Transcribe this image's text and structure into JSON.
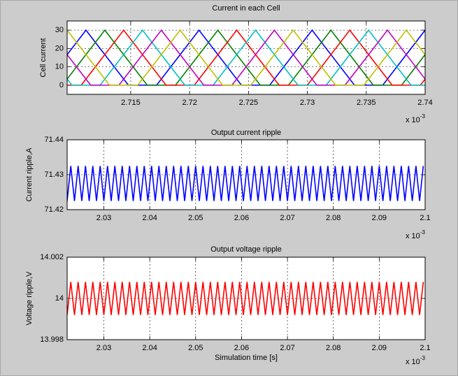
{
  "chart_data": [
    {
      "type": "line",
      "title": "Current in each Cell",
      "ylabel": "Cell current",
      "x_scale": {
        "base": "x 10",
        "exponent": "-3"
      },
      "xlim": [
        2.7096,
        2.74
      ],
      "xticks": [
        2.715,
        2.72,
        2.725,
        2.73,
        2.735,
        2.74
      ],
      "ylim": [
        -5,
        35
      ],
      "yticks": [
        0,
        10,
        20,
        30
      ],
      "grid": true,
      "series": [
        {
          "color": "#0000ff",
          "x": [
            2.7076,
            2.7112,
            2.7148,
            2.7172,
            2.7208,
            2.7244,
            2.7268,
            2.7304,
            2.734,
            2.7364,
            2.74
          ],
          "values": [
            0,
            30,
            0,
            0,
            30,
            0,
            0,
            30,
            0,
            0,
            30
          ]
        },
        {
          "color": "#008000",
          "x": [
            2.7092,
            2.7128,
            2.7164,
            2.7188,
            2.7224,
            2.726,
            2.7284,
            2.732,
            2.7356,
            2.738,
            2.7416
          ],
          "values": [
            0,
            30,
            0,
            0,
            30,
            0,
            0,
            30,
            0,
            0,
            30
          ]
        },
        {
          "color": "#ff0000",
          "x": [
            2.7084,
            2.7108,
            2.7144,
            2.718,
            2.7204,
            2.724,
            2.7276,
            2.73,
            2.7336,
            2.7372,
            2.7396,
            2.7432
          ],
          "values": [
            0,
            0,
            30,
            0,
            0,
            30,
            0,
            0,
            30,
            0,
            0,
            30
          ]
        },
        {
          "color": "#00bfbf",
          "x": [
            2.7064,
            2.71,
            2.7124,
            2.716,
            2.7196,
            2.722,
            2.7256,
            2.7292,
            2.7316,
            2.7352,
            2.7388,
            2.7412
          ],
          "values": [
            30,
            0,
            0,
            30,
            0,
            0,
            30,
            0,
            0,
            30,
            0,
            0
          ]
        },
        {
          "color": "#bf00bf",
          "x": [
            2.708,
            2.7116,
            2.714,
            2.7176,
            2.7212,
            2.7236,
            2.7272,
            2.7308,
            2.7332,
            2.7368,
            2.7404
          ],
          "values": [
            30,
            0,
            0,
            30,
            0,
            0,
            30,
            0,
            0,
            30,
            0
          ]
        },
        {
          "color": "#bfbf00",
          "x": [
            2.706,
            2.7096,
            2.7132,
            2.7156,
            2.7192,
            2.7228,
            2.7252,
            2.7288,
            2.7324,
            2.7348,
            2.7384,
            2.742
          ],
          "values": [
            0,
            30,
            0,
            0,
            30,
            0,
            0,
            30,
            0,
            0,
            30,
            0
          ]
        }
      ]
    },
    {
      "type": "line",
      "title": "Output current ripple",
      "ylabel": "Current ripple,A",
      "x_scale": {
        "base": "x 10",
        "exponent": "-3"
      },
      "xlim": [
        2.022,
        2.1
      ],
      "xticks": [
        2.03,
        2.04,
        2.05,
        2.06,
        2.07,
        2.08,
        2.09,
        2.1
      ],
      "ylim": [
        71.42,
        71.44
      ],
      "yticks": [
        71.42,
        71.43,
        71.44
      ],
      "grid": true,
      "x": [
        2.022,
        2.0228,
        2.0236,
        2.0244,
        2.0252,
        2.026,
        2.0268,
        2.0276,
        2.0284,
        2.0292,
        2.03,
        2.0308,
        2.0316,
        2.0324,
        2.0332,
        2.034,
        2.0348,
        2.0356,
        2.0364,
        2.0372,
        2.038,
        2.0388,
        2.0396,
        2.0404,
        2.0412,
        2.042,
        2.0428,
        2.0436,
        2.0444,
        2.0452,
        2.046,
        2.0468,
        2.0476,
        2.0484,
        2.0492,
        2.05,
        2.0508,
        2.0516,
        2.0524,
        2.0532,
        2.054,
        2.0548,
        2.0556,
        2.0564,
        2.0572,
        2.058,
        2.0588,
        2.0596,
        2.0604,
        2.0612,
        2.062,
        2.0628,
        2.0636,
        2.0644,
        2.0652,
        2.066,
        2.0668,
        2.0676,
        2.0684,
        2.0692,
        2.07,
        2.0708,
        2.0716,
        2.0724,
        2.0732,
        2.074,
        2.0748,
        2.0756,
        2.0764,
        2.0772,
        2.078,
        2.0788,
        2.0796,
        2.0804,
        2.0812,
        2.082,
        2.0828,
        2.0836,
        2.0844,
        2.0852,
        2.086,
        2.0868,
        2.0876,
        2.0884,
        2.0892,
        2.09,
        2.0908,
        2.0916,
        2.0924,
        2.0932,
        2.094,
        2.0948,
        2.0956,
        2.0964,
        2.0972,
        2.098,
        2.0988,
        2.0996
      ],
      "series": [
        {
          "color": "#0000ff",
          "values": [
            71.4225,
            71.4325,
            71.4225,
            71.4325,
            71.4225,
            71.4325,
            71.4225,
            71.4325,
            71.4225,
            71.4325,
            71.4225,
            71.4325,
            71.4225,
            71.4325,
            71.4225,
            71.4325,
            71.4225,
            71.4325,
            71.4225,
            71.4325,
            71.4225,
            71.4325,
            71.4225,
            71.4325,
            71.4225,
            71.4325,
            71.4225,
            71.4325,
            71.4225,
            71.4325,
            71.4225,
            71.4325,
            71.4225,
            71.4325,
            71.4225,
            71.4325,
            71.4225,
            71.4325,
            71.4225,
            71.4325,
            71.4225,
            71.4325,
            71.4225,
            71.4325,
            71.4225,
            71.4325,
            71.4225,
            71.4325,
            71.4225,
            71.4325,
            71.4225,
            71.4325,
            71.4225,
            71.4325,
            71.4225,
            71.4325,
            71.4225,
            71.4325,
            71.4225,
            71.4325,
            71.4225,
            71.4325,
            71.4225,
            71.4325,
            71.4225,
            71.4325,
            71.4225,
            71.4325,
            71.4225,
            71.4325,
            71.4225,
            71.4325,
            71.4225,
            71.4325,
            71.4225,
            71.4325,
            71.4225,
            71.4325,
            71.4225,
            71.4325,
            71.4225,
            71.4325,
            71.4225,
            71.4325,
            71.4225,
            71.4325,
            71.4225,
            71.4325,
            71.4225,
            71.4325,
            71.4225,
            71.4325,
            71.4225,
            71.4325,
            71.4225,
            71.4325,
            71.4225,
            71.4325
          ]
        }
      ]
    },
    {
      "type": "line",
      "title": "Output voltage ripple",
      "ylabel": "Voltage ripple,V",
      "xlabel": "Simulation time [s]",
      "x_scale": {
        "base": "x 10",
        "exponent": "-3"
      },
      "xlim": [
        2.022,
        2.1
      ],
      "xticks": [
        2.03,
        2.04,
        2.05,
        2.06,
        2.07,
        2.08,
        2.09,
        2.1
      ],
      "ylim": [
        13.998,
        14.002
      ],
      "yticks": [
        13.998,
        14,
        14.002
      ],
      "grid": true,
      "x": [
        2.022,
        2.0228,
        2.0236,
        2.0244,
        2.0252,
        2.026,
        2.0268,
        2.0276,
        2.0284,
        2.0292,
        2.03,
        2.0308,
        2.0316,
        2.0324,
        2.0332,
        2.034,
        2.0348,
        2.0356,
        2.0364,
        2.0372,
        2.038,
        2.0388,
        2.0396,
        2.0404,
        2.0412,
        2.042,
        2.0428,
        2.0436,
        2.0444,
        2.0452,
        2.046,
        2.0468,
        2.0476,
        2.0484,
        2.0492,
        2.05,
        2.0508,
        2.0516,
        2.0524,
        2.0532,
        2.054,
        2.0548,
        2.0556,
        2.0564,
        2.0572,
        2.058,
        2.0588,
        2.0596,
        2.0604,
        2.0612,
        2.062,
        2.0628,
        2.0636,
        2.0644,
        2.0652,
        2.066,
        2.0668,
        2.0676,
        2.0684,
        2.0692,
        2.07,
        2.0708,
        2.0716,
        2.0724,
        2.0732,
        2.074,
        2.0748,
        2.0756,
        2.0764,
        2.0772,
        2.078,
        2.0788,
        2.0796,
        2.0804,
        2.0812,
        2.082,
        2.0828,
        2.0836,
        2.0844,
        2.0852,
        2.086,
        2.0868,
        2.0876,
        2.0884,
        2.0892,
        2.09,
        2.0908,
        2.0916,
        2.0924,
        2.0932,
        2.094,
        2.0948,
        2.0956,
        2.0964,
        2.0972,
        2.098,
        2.0988,
        2.0996
      ],
      "series": [
        {
          "color": "#ff0000",
          "values": [
            13.9992,
            14.0008,
            13.9992,
            14.0008,
            13.9992,
            14.0008,
            13.9992,
            14.0008,
            13.9992,
            14.0008,
            13.9992,
            14.0008,
            13.9992,
            14.0008,
            13.9992,
            14.0008,
            13.9992,
            14.0008,
            13.9992,
            14.0008,
            13.9992,
            14.0008,
            13.9992,
            14.0008,
            13.9992,
            14.0008,
            13.9992,
            14.0008,
            13.9992,
            14.0008,
            13.9992,
            14.0008,
            13.9992,
            14.0008,
            13.9992,
            14.0008,
            13.9992,
            14.0008,
            13.9992,
            14.0008,
            13.9992,
            14.0008,
            13.9992,
            14.0008,
            13.9992,
            14.0008,
            13.9992,
            14.0008,
            13.9992,
            14.0008,
            13.9992,
            14.0008,
            13.9992,
            14.0008,
            13.9992,
            14.0008,
            13.9992,
            14.0008,
            13.9992,
            14.0008,
            13.9992,
            14.0008,
            13.9992,
            14.0008,
            13.9992,
            14.0008,
            13.9992,
            14.0008,
            13.9992,
            14.0008,
            13.9992,
            14.0008,
            13.9992,
            14.0008,
            13.9992,
            14.0008,
            13.9992,
            14.0008,
            13.9992,
            14.0008,
            13.9992,
            14.0008,
            13.9992,
            14.0008,
            13.9992,
            14.0008,
            13.9992,
            14.0008,
            13.9992,
            14.0008,
            13.9992,
            14.0008,
            13.9992,
            14.0008,
            13.9992,
            14.0008,
            13.9992,
            14.0008
          ]
        }
      ]
    }
  ]
}
